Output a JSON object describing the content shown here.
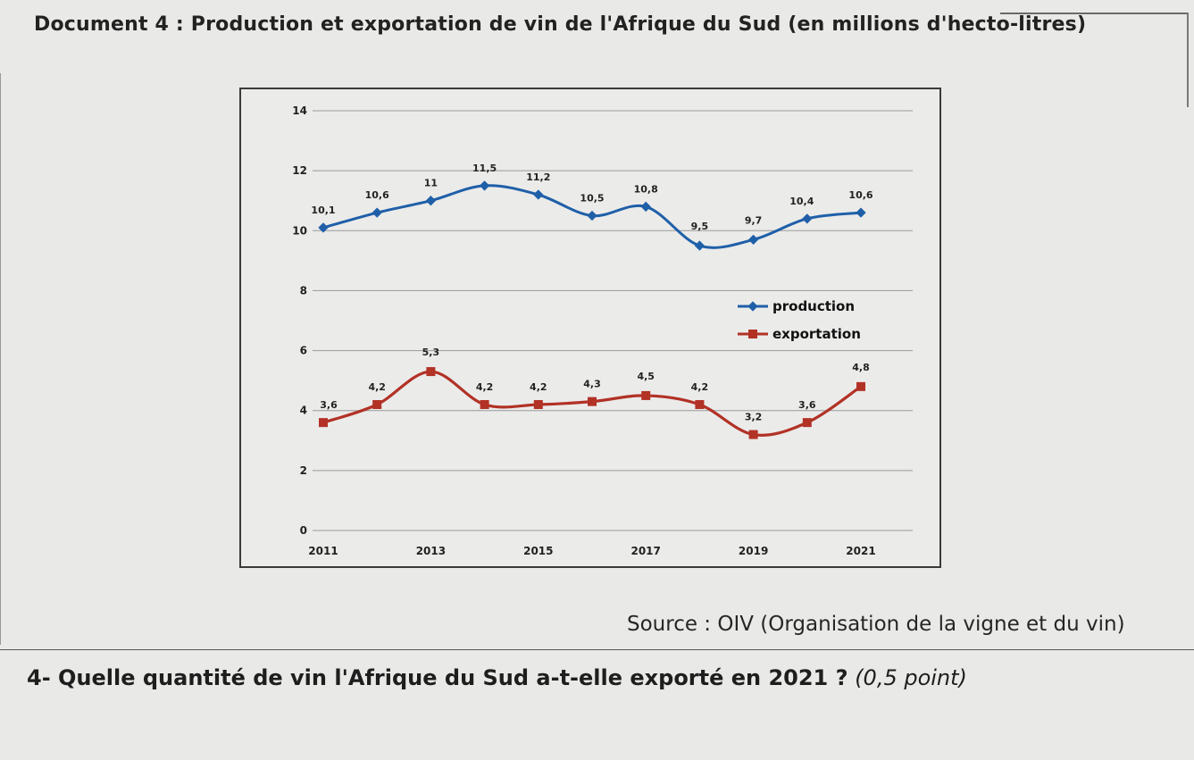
{
  "document": {
    "title": "Document 4 : Production et exportation de vin de l'Afrique du Sud (en millions d'hecto-litres)",
    "source": "Source : OIV (Organisation de la vigne et du vin)",
    "question": "4- Quelle quantité de vin l'Afrique du Sud a-t-elle exporté en 2021 ?",
    "question_points": "(0,5 point)"
  },
  "colors": {
    "production": "#1f5fa8",
    "exportation": "#b23226",
    "grid": "#9a9a9a"
  },
  "chart_data": {
    "type": "line",
    "title": "",
    "xlabel": "",
    "ylabel": "",
    "x": [
      2011,
      2012,
      2013,
      2014,
      2015,
      2016,
      2017,
      2018,
      2019,
      2020,
      2021
    ],
    "x_tick_labels": [
      "2011",
      "2013",
      "2015",
      "2017",
      "2019",
      "2021"
    ],
    "y_ticks": [
      0,
      2,
      4,
      6,
      8,
      10,
      12,
      14
    ],
    "ylim": [
      0,
      14
    ],
    "grid": true,
    "legend_position": "right",
    "series": [
      {
        "name": "production",
        "marker": "diamond",
        "values": [
          10.1,
          10.6,
          11,
          11.5,
          11.2,
          10.5,
          10.8,
          9.5,
          9.7,
          10.4,
          10.6
        ],
        "labels": [
          "10,1",
          "10,6",
          "11",
          "11,5",
          "11,2",
          "10,5",
          "10,8",
          "9,5",
          "9,7",
          "10,4",
          "10,6"
        ]
      },
      {
        "name": "exportation",
        "marker": "square",
        "values": [
          3.6,
          4.2,
          5.3,
          4.2,
          4.2,
          4.3,
          4.5,
          4.2,
          3.2,
          3.6,
          4.8
        ],
        "labels": [
          "3,6",
          "4,2",
          "5,3",
          "4,2",
          "4,2",
          "4,3",
          "4,5",
          "4,2",
          "3,2",
          "3,6",
          "4,8"
        ]
      }
    ]
  }
}
